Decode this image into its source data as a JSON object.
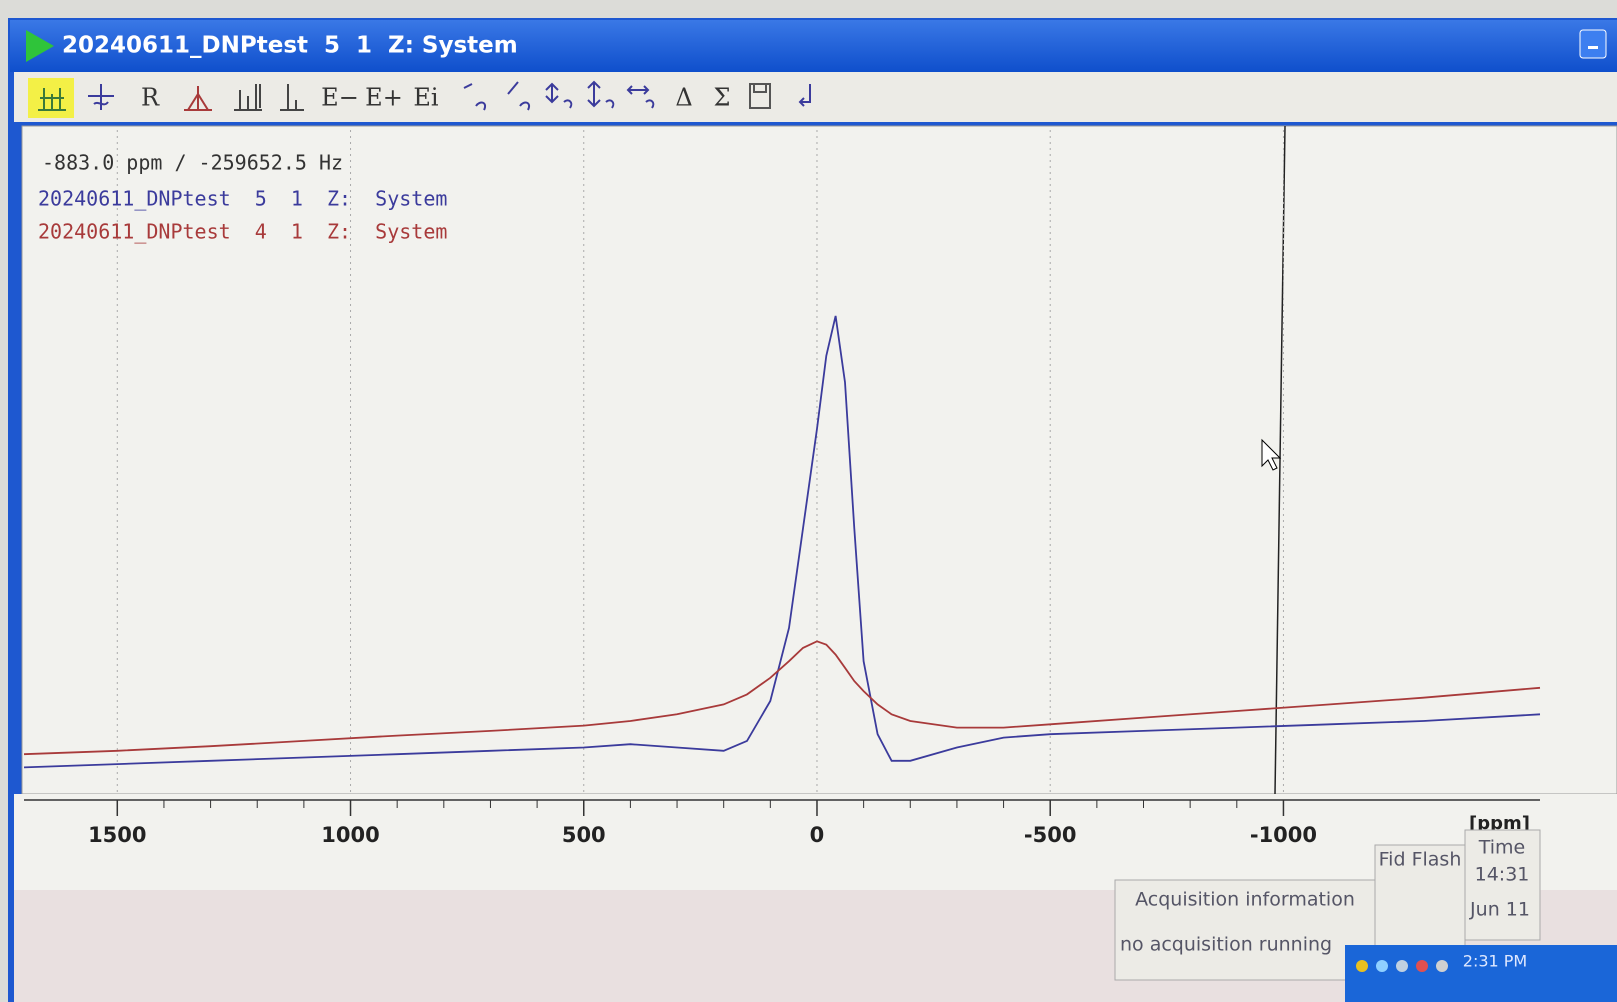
{
  "window": {
    "title": "20240611_DNPtest  5  1  Z: System"
  },
  "toolbar": {
    "labels": [
      "R",
      "E−",
      "E+",
      "Ei",
      "Δ",
      "Σ"
    ]
  },
  "cursor_readout": "-883.0 ppm / -259652.5 Hz",
  "chart_data": {
    "type": "line",
    "x_label": "[ppm]",
    "xlim": [
      1700,
      -1550
    ],
    "xticks": [
      1500,
      1000,
      500,
      0,
      -500,
      -1000
    ],
    "ylim": [
      0,
      100
    ],
    "grid": true,
    "x": [
      1700,
      1500,
      1300,
      1100,
      900,
      700,
      500,
      400,
      300,
      200,
      150,
      100,
      60,
      30,
      0,
      -20,
      -40,
      -60,
      -80,
      -100,
      -130,
      -160,
      -200,
      -300,
      -400,
      -500,
      -700,
      -900,
      -1100,
      -1300,
      -1550
    ],
    "series": [
      {
        "name": "20240611_DNPtest  5  1  Z:  System",
        "color": "#3b3b9c",
        "values": [
          4,
          4.5,
          5,
          5.5,
          6,
          6.5,
          7,
          7.5,
          7,
          6.5,
          8,
          14,
          25,
          40,
          55,
          66,
          72,
          62,
          40,
          20,
          9,
          5,
          5,
          7,
          8.5,
          9,
          9.5,
          10,
          10.5,
          11,
          12
        ]
      },
      {
        "name": "20240611_DNPtest  4  1  Z:  System",
        "color": "#a83a3a",
        "values": [
          6,
          6.5,
          7.2,
          8,
          8.8,
          9.5,
          10.3,
          11,
          12,
          13.5,
          15,
          17.5,
          20,
          22,
          23,
          22.5,
          21,
          19,
          17,
          15.5,
          13.5,
          12,
          11,
          10,
          10,
          10.5,
          11.5,
          12.5,
          13.5,
          14.5,
          16
        ]
      }
    ]
  },
  "status": {
    "acquisition_header": "Acquisition information",
    "acquisition_text": "no acquisition running",
    "fid_flash": "Fid Flash",
    "time_header": "Time",
    "time": "14:31",
    "date": "Jun 11"
  },
  "taskbar": {
    "clock": "2:31 PM"
  }
}
